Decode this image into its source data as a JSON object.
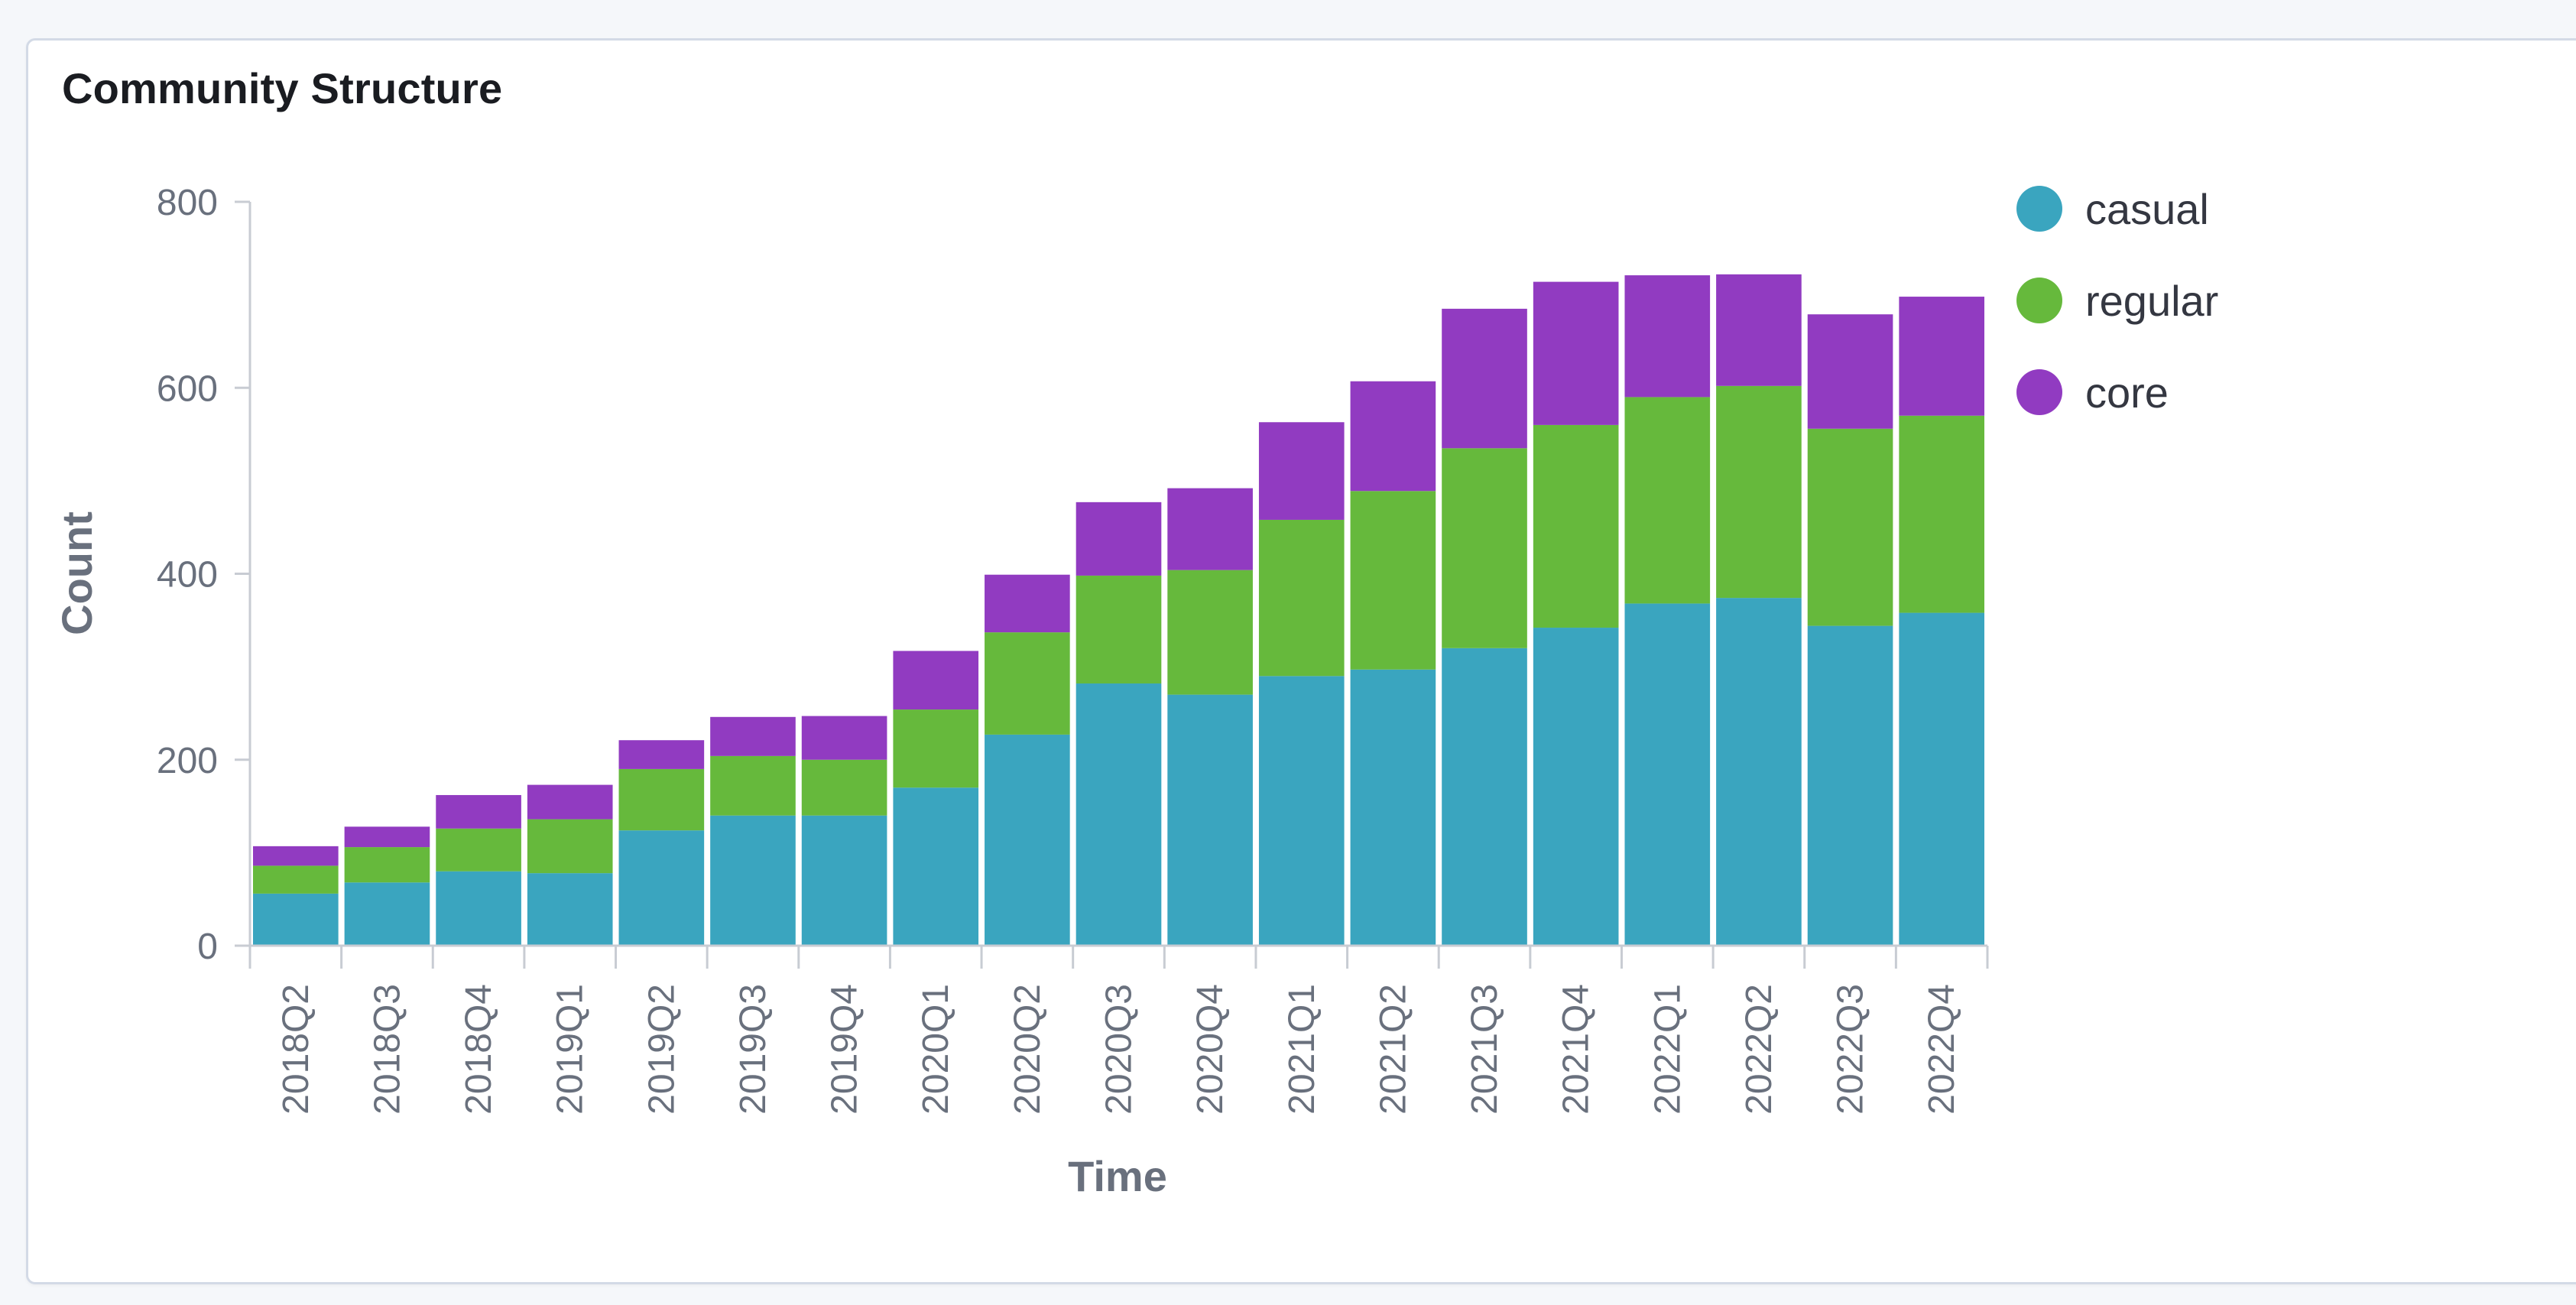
{
  "panel": {
    "title": "Community Structure"
  },
  "chart_data": {
    "type": "bar",
    "stacked": true,
    "title": "Community Structure",
    "xlabel": "Time",
    "ylabel": "Count",
    "ylim": [
      0,
      800
    ],
    "yticks": [
      0,
      200,
      400,
      600,
      800
    ],
    "grid": false,
    "legend_position": "top-right",
    "categories": [
      "2018Q2",
      "2018Q3",
      "2018Q4",
      "2019Q1",
      "2019Q2",
      "2019Q3",
      "2019Q4",
      "2020Q1",
      "2020Q2",
      "2020Q3",
      "2020Q4",
      "2021Q1",
      "2021Q2",
      "2021Q3",
      "2021Q4",
      "2022Q1",
      "2022Q2",
      "2022Q3",
      "2022Q4"
    ],
    "series": [
      {
        "name": "casual",
        "color": "#3aa5bf",
        "values": [
          56,
          68,
          80,
          78,
          124,
          140,
          140,
          170,
          227,
          282,
          270,
          290,
          297,
          320,
          342,
          368,
          374,
          344,
          358
        ]
      },
      {
        "name": "regular",
        "color": "#66b93c",
        "values": [
          30,
          38,
          46,
          58,
          66,
          64,
          60,
          84,
          110,
          116,
          134,
          168,
          192,
          215,
          218,
          222,
          228,
          212,
          212
        ]
      },
      {
        "name": "core",
        "color": "#913bc1",
        "values": [
          21,
          22,
          36,
          37,
          31,
          42,
          47,
          63,
          62,
          79,
          88,
          105,
          118,
          150,
          154,
          131,
          120,
          123,
          128
        ]
      }
    ]
  }
}
